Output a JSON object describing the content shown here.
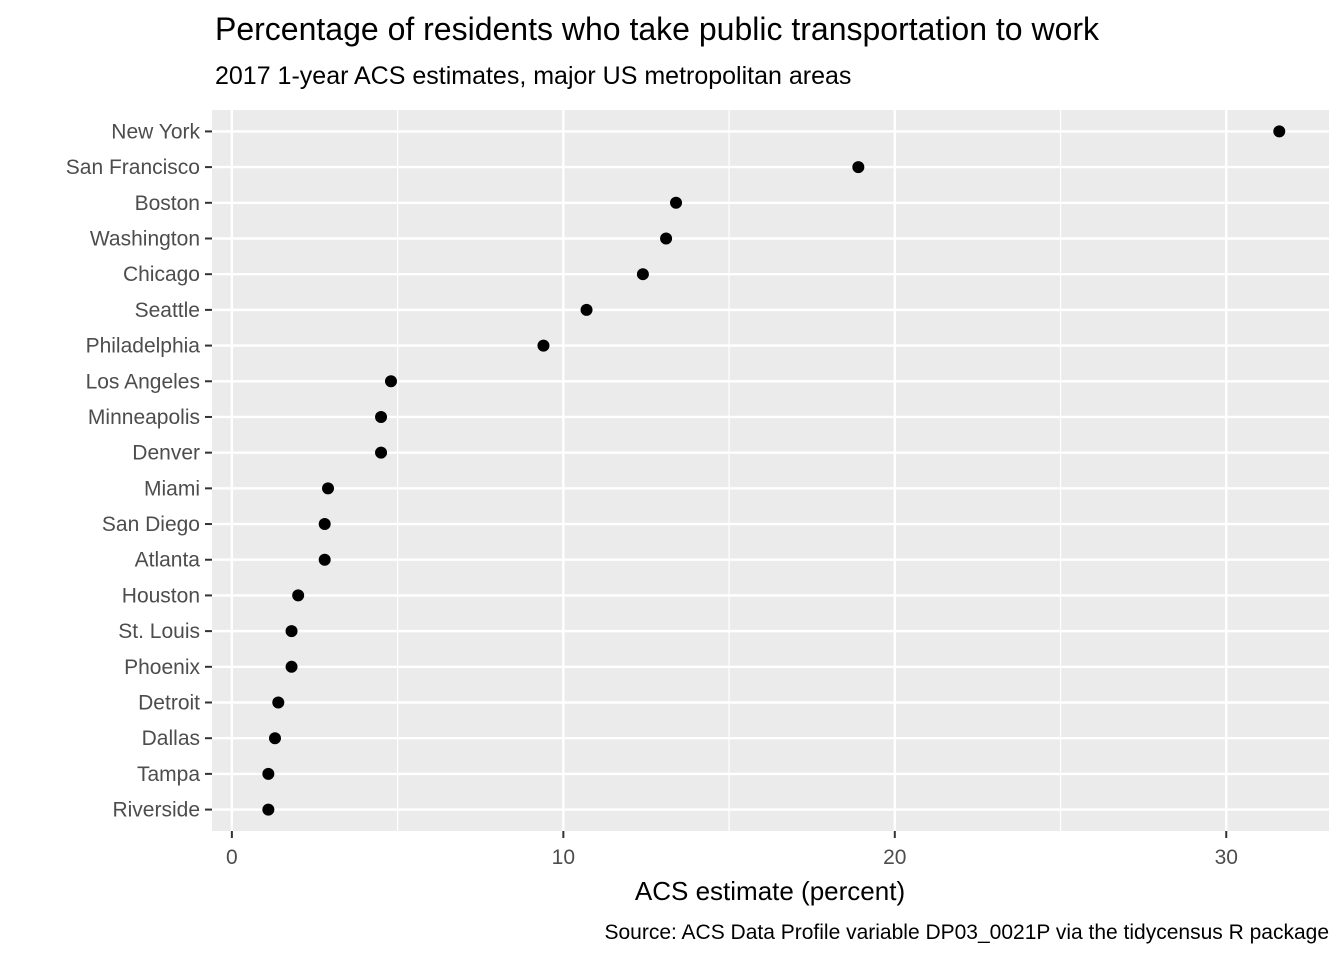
{
  "chart_data": {
    "type": "scatter",
    "title": "Percentage of residents who take public transportation to work",
    "subtitle": "2017 1-year ACS estimates, major US metropolitan areas",
    "xlabel": "ACS estimate (percent)",
    "ylabel": "",
    "caption": "Source: ACS Data Profile variable DP03_0021P via the tidycensus R package",
    "xlim": [
      -0.6,
      33.1
    ],
    "x_ticks": [
      0,
      10,
      20,
      30
    ],
    "x_minor_ticks": [
      5,
      15,
      25
    ],
    "grid": true,
    "panel_background": "#ebebeb",
    "grid_color": "#ffffff",
    "point_color": "#000000",
    "categories": [
      "New York",
      "San Francisco",
      "Boston",
      "Washington",
      "Chicago",
      "Seattle",
      "Philadelphia",
      "Los Angeles",
      "Minneapolis",
      "Denver",
      "Miami",
      "San Diego",
      "Atlanta",
      "Houston",
      "St. Louis",
      "Phoenix",
      "Detroit",
      "Dallas",
      "Tampa",
      "Riverside"
    ],
    "values": [
      31.6,
      18.9,
      13.4,
      13.1,
      12.4,
      10.7,
      9.4,
      4.8,
      4.5,
      4.5,
      2.9,
      2.8,
      2.8,
      2.0,
      1.8,
      1.8,
      1.4,
      1.3,
      1.1,
      1.1
    ]
  }
}
